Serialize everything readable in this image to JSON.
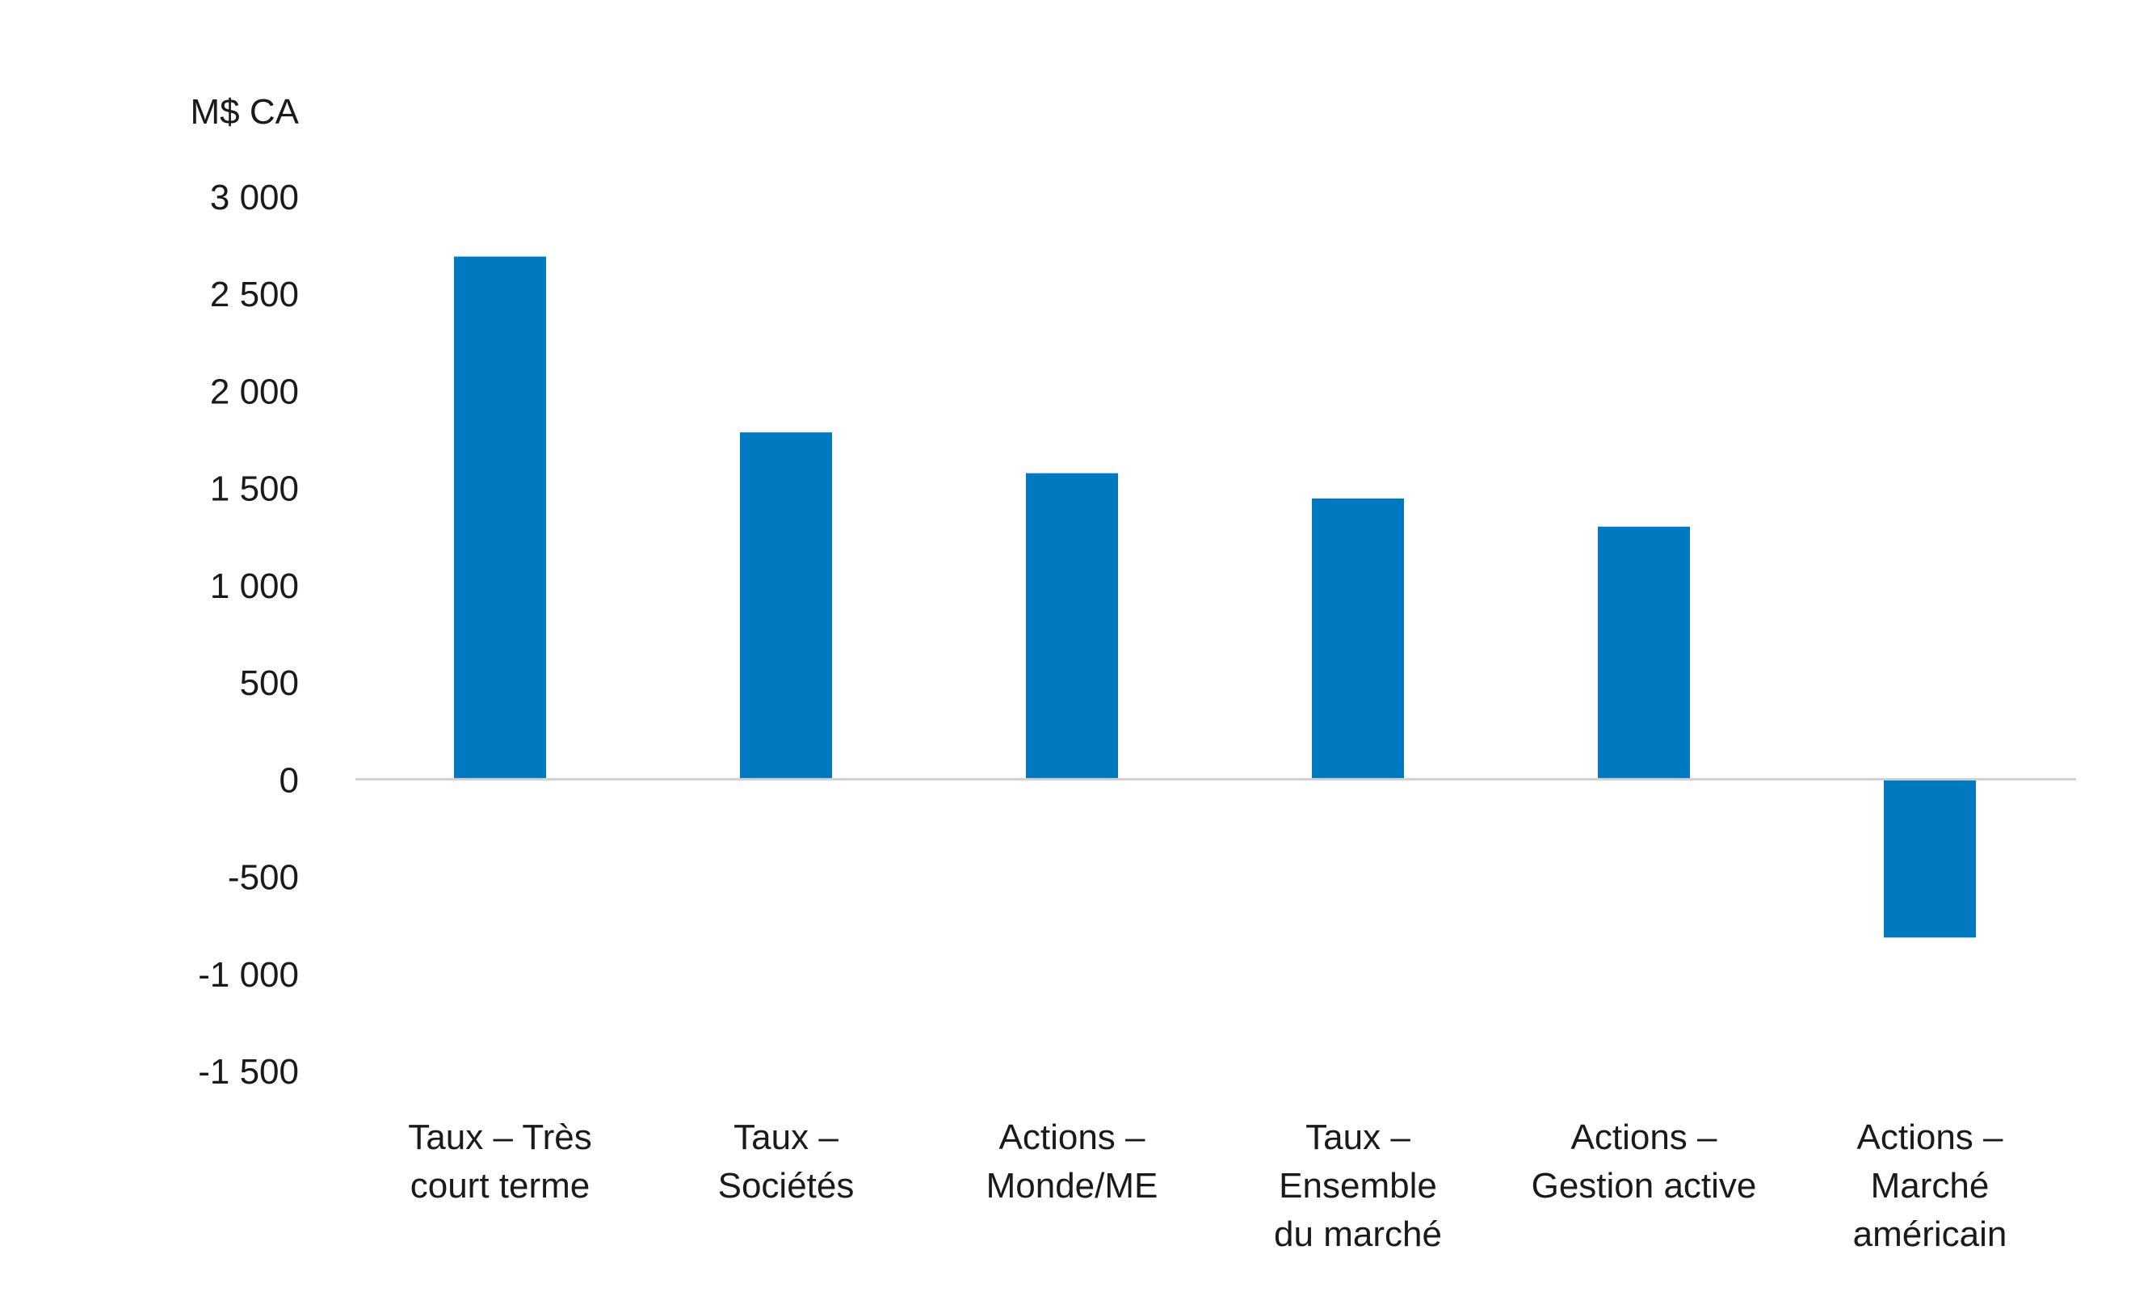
{
  "chart_data": {
    "type": "bar",
    "title": "",
    "xlabel": "",
    "ylabel": "M$ CA",
    "categories": [
      [
        "Taux – Très",
        "court terme"
      ],
      [
        "Taux –",
        "Sociétés"
      ],
      [
        "Actions –",
        "Monde/ME"
      ],
      [
        "Taux –",
        "Ensemble",
        "du marché"
      ],
      [
        "Actions –",
        "Gestion active"
      ],
      [
        "Actions –",
        "Marché",
        "américain"
      ]
    ],
    "values": [
      2690,
      1785,
      1575,
      1445,
      1300,
      -815
    ],
    "ylim": [
      -1500,
      3000
    ],
    "yticks": [
      3000,
      2500,
      2000,
      1500,
      1000,
      500,
      0,
      -500,
      -1000,
      -1500
    ],
    "ytick_labels": [
      "3 000",
      "2 500",
      "2 000",
      "1 500",
      "1 000",
      "500",
      "0",
      "-500",
      "-1 000",
      "-1 500"
    ],
    "grid": false,
    "legend": "none",
    "colors": {
      "bar": "#0079c1",
      "axis": "#d0d0d0",
      "text": "#1a1a1a"
    }
  }
}
